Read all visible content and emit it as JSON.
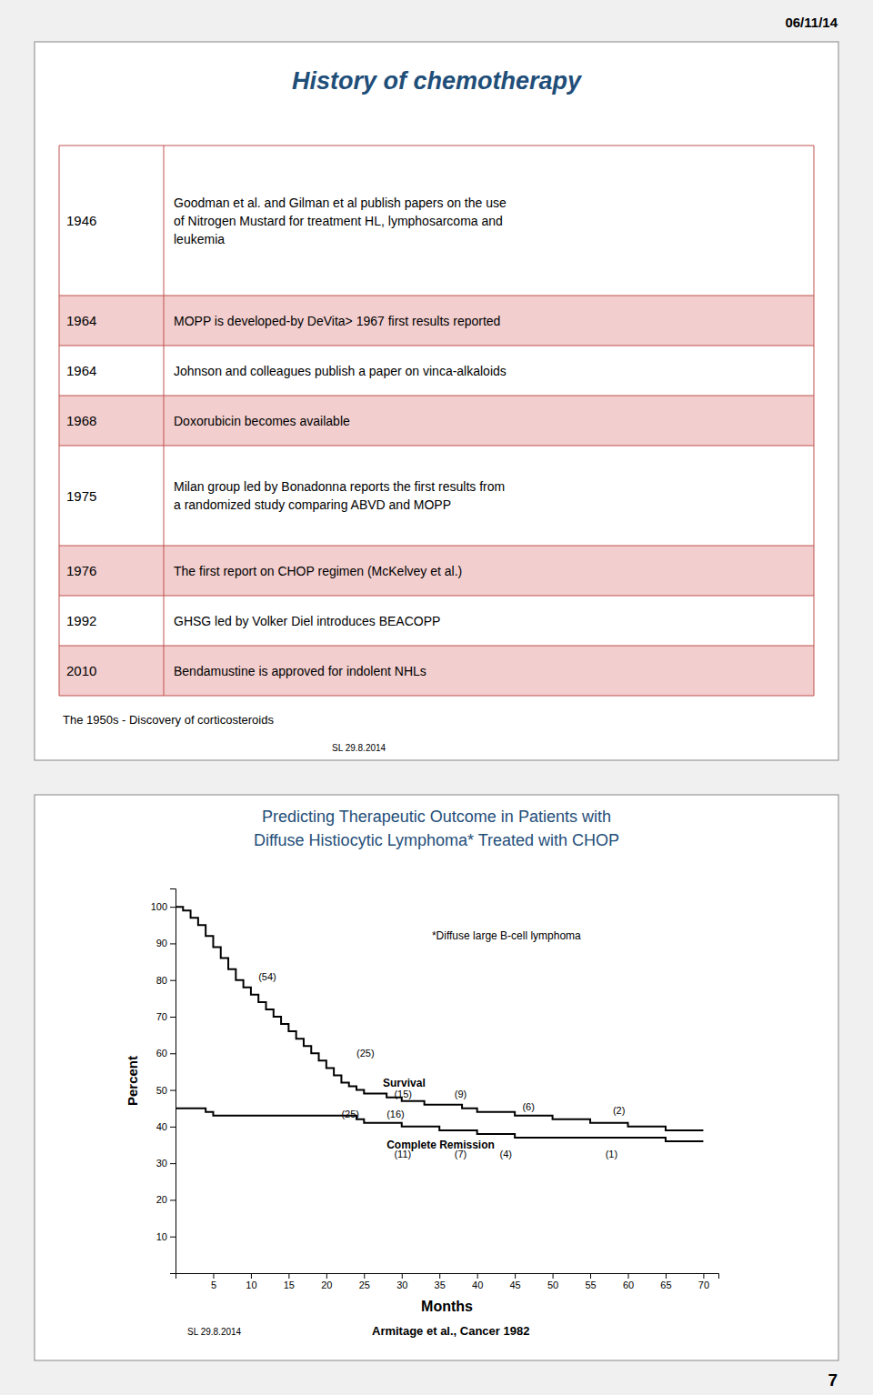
{
  "background": "#f0f0f0",
  "date_label": "06/11/14",
  "page_number": "7",
  "table": {
    "title": "History of chemotherapy",
    "title_color": "#1F4E79",
    "shaded_row_color": "#F2CECE",
    "border_color": "#C0504D",
    "rows": [
      {
        "year": "1946",
        "text": "Goodman et al. and Gilman et al publish papers on the use\nof Nitrogen Mustard for treatment HL, lymphosarcoma and\nleukemia",
        "shaded": false
      },
      {
        "year": "1964",
        "text": "MOPP is developed-by DeVita> 1967 first results reported",
        "shaded": true
      },
      {
        "year": "1964",
        "text": "Johnson and colleagues publish a paper on vinca-alkaloids",
        "shaded": false
      },
      {
        "year": "1968",
        "text": "Doxorubicin becomes available",
        "shaded": true
      },
      {
        "year": "1975",
        "text": "Milan group led by Bonadonna reports the first results from\na randomized study comparing ABVD and MOPP",
        "shaded": false
      },
      {
        "year": "1976",
        "text": "The first report on CHOP regimen (McKelvey et al.)",
        "shaded": true
      },
      {
        "year": "1992",
        "text": "GHSG led by Volker Diel introduces BEACOPP",
        "shaded": false
      },
      {
        "year": "2010",
        "text": "Bendamustine is approved for indolent NHLs",
        "shaded": true
      }
    ],
    "footer_text": "The 1950s - Discovery of corticosteroids",
    "footer_small": "SL 29.8.2014"
  },
  "chart_data": {
    "type": "step",
    "title": "Predicting Therapeutic Outcome in Patients with",
    "subtitle": "Diffuse Histiocytic Lymphoma* Treated with CHOP",
    "title_color": "#1F4E79",
    "x_label": "Months",
    "y_label": "Percent",
    "xlim": [
      0,
      72
    ],
    "xticks": [
      5,
      10,
      15,
      20,
      25,
      30,
      35,
      40,
      45,
      50,
      55,
      60,
      65,
      70
    ],
    "ylim": [
      0,
      105
    ],
    "yticks": [
      10,
      20,
      30,
      40,
      50,
      60,
      70,
      80,
      90,
      100
    ],
    "grid": false,
    "series": [
      {
        "color": "#000000",
        "x": [
          0,
          1,
          2,
          3,
          4,
          5,
          6,
          7,
          8,
          9,
          10,
          11,
          12,
          13,
          14,
          15,
          16,
          17,
          18,
          19,
          20,
          21,
          22,
          23,
          24,
          25,
          28,
          30,
          33,
          35,
          38,
          40,
          43,
          45,
          48,
          50,
          53,
          55,
          58,
          60,
          65,
          70
        ],
        "values": [
          100,
          99,
          97,
          95,
          92,
          89,
          86,
          83,
          80,
          78,
          76,
          74,
          72,
          70,
          68,
          66,
          64,
          62,
          60,
          58,
          56,
          54,
          52,
          51,
          50,
          49,
          48,
          47,
          46,
          46,
          45,
          44,
          44,
          43,
          43,
          42,
          42,
          41,
          41,
          40,
          39,
          39
        ]
      },
      {
        "color": "#000000",
        "x": [
          0,
          4,
          5,
          8,
          10,
          12,
          15,
          18,
          20,
          22,
          24,
          25,
          28,
          30,
          33,
          35,
          38,
          40,
          43,
          45,
          50,
          55,
          60,
          65,
          70
        ],
        "values": [
          45,
          44,
          43,
          43,
          43,
          43,
          43,
          43,
          43,
          43,
          42,
          41,
          41,
          40,
          40,
          39,
          39,
          38,
          38,
          37,
          37,
          37,
          37,
          36,
          36
        ]
      }
    ],
    "annotations": [
      {
        "text": "(54)",
        "x": 11,
        "y": 80
      },
      {
        "text": "(25)",
        "x": 24,
        "y": 59
      },
      {
        "text": "Survival",
        "x": 27.5,
        "y": 51
      },
      {
        "text": "(15)",
        "x": 29,
        "y": 48
      },
      {
        "text": "(9)",
        "x": 37,
        "y": 48
      },
      {
        "text": "(6)",
        "x": 46,
        "y": 44.5
      },
      {
        "text": "(2)",
        "x": 58,
        "y": 43.5
      },
      {
        "text": "(25)",
        "x": 22,
        "y": 42.5
      },
      {
        "text": "(16)",
        "x": 28,
        "y": 42.5
      },
      {
        "text": "Complete Remission",
        "x": 28,
        "y": 34
      },
      {
        "text": "(11)",
        "x": 29,
        "y": 31.5
      },
      {
        "text": "(7)",
        "x": 37,
        "y": 31.5
      },
      {
        "text": "(4)",
        "x": 43,
        "y": 31.5
      },
      {
        "text": "(1)",
        "x": 57,
        "y": 31.5
      },
      {
        "text": "*Diffuse large B-cell lymphoma",
        "x": 34,
        "y": 91
      }
    ],
    "footnotes": [
      "SL 29.8.2014",
      "Armitage et al., Cancer 1982"
    ]
  }
}
